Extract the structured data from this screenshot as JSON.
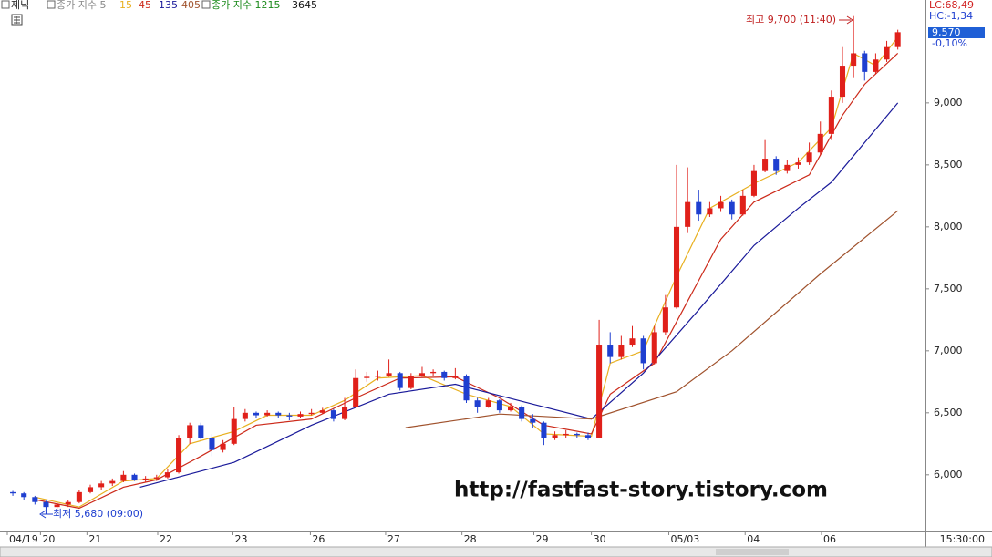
{
  "chart_data": {
    "type": "candlestick",
    "symbol": "제닉",
    "legend_extra": [
      "종가 지수 5",
      "종가 지수 1215",
      "3645"
    ],
    "up_color": "#e0201a",
    "down_color": "#1f3fd0",
    "open": [
      5860,
      5850,
      5820,
      5780,
      5740,
      5760,
      5780,
      5860,
      5900,
      5930,
      5950,
      6000,
      5960,
      5970,
      5980,
      6020,
      6300,
      6400,
      6300,
      6200,
      6250,
      6450,
      6500,
      6480,
      6500,
      6480,
      6470,
      6490,
      6500,
      6520,
      6450,
      6550,
      6780,
      6790,
      6800,
      6820,
      6700,
      6800,
      6820,
      6830,
      6780,
      6800,
      6600,
      6550,
      6600,
      6520,
      6550,
      6450,
      6420,
      6300,
      6320,
      6330,
      6320,
      6300,
      7050,
      6950,
      7050,
      7100,
      6900,
      7150,
      7350,
      8000,
      8200,
      8100,
      8150,
      8200,
      8100,
      8250,
      8450,
      8550,
      8450,
      8500,
      8520,
      8600,
      8750,
      9050,
      9300,
      9400,
      9250,
      9350,
      9450
    ],
    "high": [
      5870,
      5860,
      5830,
      5790,
      5780,
      5800,
      5880,
      5920,
      5950,
      5970,
      6030,
      6010,
      5990,
      6000,
      6050,
      6320,
      6420,
      6420,
      6330,
      6280,
      6550,
      6530,
      6510,
      6520,
      6510,
      6500,
      6510,
      6530,
      6540,
      6530,
      6620,
      6850,
      6830,
      6840,
      6930,
      6830,
      6820,
      6870,
      6850,
      6840,
      6860,
      6810,
      6620,
      6620,
      6610,
      6580,
      6560,
      6490,
      6430,
      6350,
      6360,
      6340,
      6340,
      7250,
      7150,
      7120,
      7200,
      7120,
      7200,
      7450,
      8500,
      8480,
      8300,
      8200,
      8250,
      8220,
      8300,
      8500,
      8700,
      8570,
      8540,
      8560,
      8680,
      8850,
      9100,
      9450,
      9700,
      9420,
      9400,
      9500,
      9590
    ],
    "low": [
      5830,
      5800,
      5760,
      5680,
      5720,
      5740,
      5770,
      5850,
      5880,
      5910,
      5940,
      5950,
      5940,
      5950,
      5970,
      6010,
      6250,
      6280,
      6150,
      6180,
      6240,
      6430,
      6460,
      6470,
      6460,
      6440,
      6460,
      6480,
      6490,
      6430,
      6440,
      6540,
      6750,
      6760,
      6790,
      6680,
      6690,
      6790,
      6800,
      6760,
      6770,
      6580,
      6500,
      6540,
      6500,
      6510,
      6430,
      6380,
      6240,
      6280,
      6300,
      6300,
      6280,
      6300,
      6900,
      6930,
      7030,
      6850,
      6890,
      7130,
      7340,
      7950,
      8050,
      8080,
      8120,
      8060,
      8090,
      8240,
      8440,
      8420,
      8430,
      8470,
      8500,
      8580,
      8700,
      9000,
      9200,
      9180,
      9230,
      9330,
      9430
    ],
    "close": [
      5850,
      5820,
      5780,
      5740,
      5760,
      5780,
      5860,
      5900,
      5930,
      5950,
      6000,
      5960,
      5970,
      5980,
      6020,
      6300,
      6400,
      6300,
      6200,
      6250,
      6450,
      6500,
      6480,
      6500,
      6480,
      6470,
      6490,
      6500,
      6520,
      6450,
      6550,
      6780,
      6790,
      6800,
      6820,
      6700,
      6800,
      6820,
      6830,
      6780,
      6800,
      6600,
      6550,
      6600,
      6520,
      6550,
      6450,
      6420,
      6300,
      6320,
      6330,
      6320,
      6300,
      7050,
      6950,
      7050,
      7100,
      6900,
      7150,
      7350,
      8000,
      8200,
      8100,
      8150,
      8200,
      8100,
      8250,
      8450,
      8550,
      8450,
      8500,
      8520,
      8600,
      8750,
      9050,
      9300,
      9400,
      9250,
      9350,
      9450,
      9570
    ],
    "series": [
      {
        "name": "15",
        "color": "#e8b020",
        "x": [
          2,
          6,
          10,
          13,
          16,
          20,
          23,
          27,
          30,
          33,
          37,
          41,
          45,
          48,
          52.3,
          54,
          57,
          60,
          63,
          67,
          71,
          74,
          76,
          78,
          80
        ],
        "values": [
          5820,
          5740,
          5950,
          5970,
          6250,
          6350,
          6480,
          6480,
          6600,
          6780,
          6800,
          6650,
          6550,
          6330,
          6310,
          6900,
          7000,
          7600,
          8150,
          8350,
          8520,
          8800,
          9400,
          9300,
          9530
        ]
      },
      {
        "name": "45",
        "color": "#cc2a1a",
        "x": [
          2,
          6,
          10,
          13,
          17,
          22,
          27,
          31,
          35,
          40,
          44,
          48,
          52.3,
          54,
          58,
          61,
          64,
          67,
          72,
          75,
          77,
          80
        ],
        "values": [
          5800,
          5730,
          5900,
          5960,
          6150,
          6400,
          6450,
          6620,
          6780,
          6790,
          6620,
          6400,
          6330,
          6650,
          6900,
          7400,
          7900,
          8200,
          8420,
          8900,
          9150,
          9400
        ]
      },
      {
        "name": "135",
        "color": "#1a1a9a",
        "x": [
          11.5,
          20,
          27,
          34,
          40,
          47,
          52.3,
          57,
          62,
          67,
          71,
          74,
          80
        ],
        "values": [
          5900,
          6100,
          6400,
          6650,
          6730,
          6570,
          6450,
          6820,
          7330,
          7850,
          8150,
          8360,
          9000
        ]
      },
      {
        "name": "405",
        "color": "#a0522d",
        "x": [
          35.5,
          44,
          52.3,
          60,
          65,
          73,
          80
        ],
        "values": [
          6380,
          6490,
          6450,
          6670,
          7000,
          7620,
          8130
        ]
      }
    ],
    "xlim": [
      -0.5,
      82.5
    ],
    "xticks": [
      {
        "value": -0.5,
        "label": "04/19"
      },
      {
        "value": 2.5,
        "label": "20"
      },
      {
        "value": 6.7,
        "label": "21"
      },
      {
        "value": 13.1,
        "label": "22"
      },
      {
        "value": 19.9,
        "label": "23"
      },
      {
        "value": 26.9,
        "label": "26"
      },
      {
        "value": 33.7,
        "label": "27"
      },
      {
        "value": 40.6,
        "label": "28"
      },
      {
        "value": 47.1,
        "label": "29"
      },
      {
        "value": 52.3,
        "label": "30"
      },
      {
        "value": 59.3,
        "label": "05/03"
      },
      {
        "value": 66.2,
        "label": "04"
      },
      {
        "value": 73.1,
        "label": "06"
      }
    ],
    "ylim": [
      5550,
      9830
    ],
    "yticks": [
      {
        "value": 6000,
        "label": "6,000"
      },
      {
        "value": 6500,
        "label": "6,500"
      },
      {
        "value": 7000,
        "label": "7,000"
      },
      {
        "value": 7500,
        "label": "7,500"
      },
      {
        "value": 8000,
        "label": "8,000"
      },
      {
        "value": 8500,
        "label": "8,500"
      },
      {
        "value": 9000,
        "label": "9,000"
      }
    ],
    "annotations": {
      "max": "최고 9,700 (11:40)",
      "min": "최저 5,680 (09:00)"
    },
    "watermark": "http://fastfast-story.tistory.com",
    "panel": {
      "lc": "LC:68,49",
      "hc": "HC:-1,34",
      "price": "9,570",
      "change": "-0,10%",
      "time": "15:30:00"
    }
  }
}
